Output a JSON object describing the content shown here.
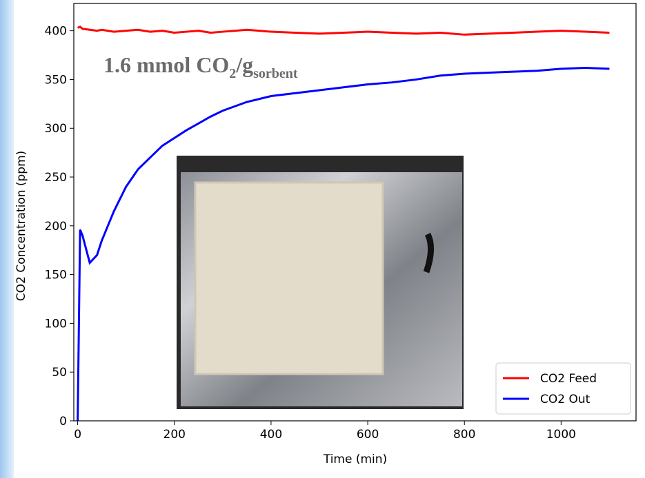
{
  "chart_data": {
    "type": "line",
    "xlabel": "Time (min)",
    "ylabel": "CO2 Concentration (ppm)",
    "annotation": {
      "parts": [
        "1.6 mmol CO",
        "2",
        "/g",
        "sorbent"
      ]
    },
    "x": [
      0,
      5,
      10,
      25,
      40,
      50,
      75,
      100,
      125,
      150,
      175,
      200,
      225,
      250,
      275,
      300,
      350,
      400,
      450,
      500,
      550,
      600,
      650,
      700,
      750,
      800,
      850,
      900,
      950,
      1000,
      1050,
      1100
    ],
    "series": [
      {
        "name": "CO2 Feed",
        "color": "#ff0000",
        "values": [
          403,
          404,
          402,
          401,
          400,
          401,
          399,
          400,
          401,
          399,
          400,
          398,
          399,
          400,
          398,
          399,
          401,
          399,
          398,
          397,
          398,
          399,
          398,
          397,
          398,
          396,
          397,
          398,
          399,
          400,
          399,
          398
        ]
      },
      {
        "name": "CO2 Out",
        "color": "#0000ff",
        "values": [
          0,
          196,
          190,
          162,
          170,
          185,
          215,
          240,
          258,
          270,
          282,
          290,
          298,
          305,
          312,
          318,
          327,
          333,
          336,
          339,
          342,
          345,
          347,
          350,
          354,
          356,
          357,
          358,
          359,
          361,
          362,
          361
        ]
      }
    ],
    "xlim": [
      -8,
      1155
    ],
    "ylim": [
      0,
      428
    ],
    "xticks": [
      0,
      200,
      400,
      600,
      800,
      1000
    ],
    "yticks": [
      0,
      50,
      100,
      150,
      200,
      250,
      300,
      350,
      400
    ],
    "legend": "lower right"
  }
}
